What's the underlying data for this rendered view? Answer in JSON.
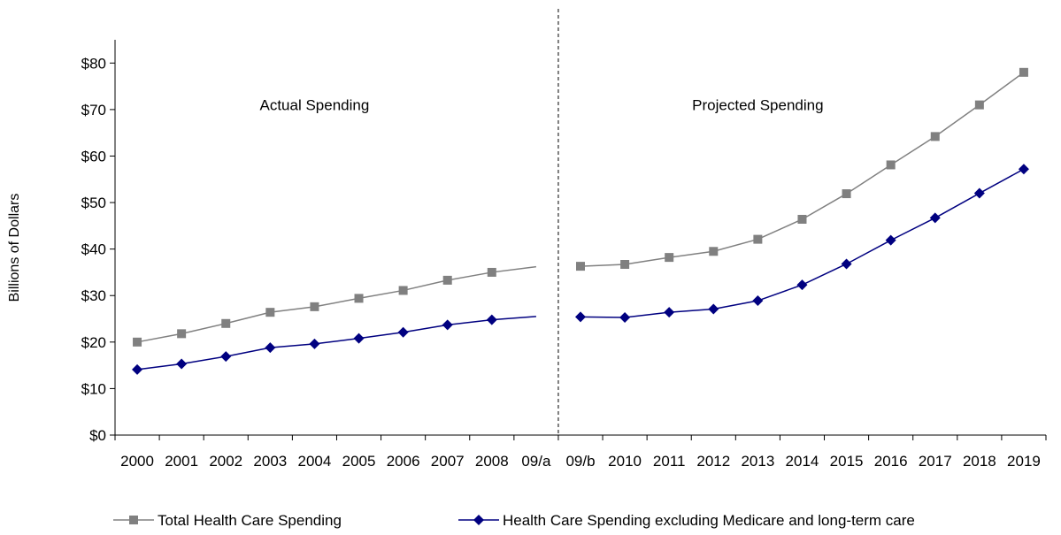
{
  "chart_data": {
    "type": "line",
    "title": "",
    "xlabel": "",
    "ylabel": "Billions of Dollars",
    "categories": [
      "2000",
      "2001",
      "2002",
      "2003",
      "2004",
      "2005",
      "2006",
      "2007",
      "2008",
      "09/a",
      "09/b",
      "2010",
      "2011",
      "2012",
      "2013",
      "2014",
      "2015",
      "2016",
      "2017",
      "2018",
      "2019"
    ],
    "y_tick_labels": [
      "$0",
      "$10",
      "$20",
      "$30",
      "$40",
      "$50",
      "$60",
      "$70",
      "$80"
    ],
    "y_ticks": [
      0,
      10,
      20,
      30,
      40,
      50,
      60,
      70,
      80
    ],
    "ylim": [
      0,
      85
    ],
    "grid": false,
    "legend_position": "bottom",
    "annotations": [
      {
        "text": "Actual Spending",
        "x_category": "2004",
        "y": 71
      },
      {
        "text": "Projected Spending",
        "x_category": "2013",
        "y": 71
      }
    ],
    "divider": {
      "between": [
        "09/a",
        "09/b"
      ],
      "style": "dashed"
    },
    "series": [
      {
        "name": "Total Health Care Spending",
        "color": "#808080",
        "marker": "square",
        "values": [
          20.0,
          21.8,
          24.0,
          26.4,
          27.6,
          29.4,
          31.1,
          33.3,
          35.0,
          36.2,
          36.3,
          36.7,
          38.2,
          39.5,
          42.1,
          46.4,
          51.9,
          58.1,
          64.2,
          71.0,
          78.0
        ]
      },
      {
        "name": "Health Care Spending excluding Medicare and long-term care",
        "color": "#000080",
        "marker": "diamond",
        "values": [
          14.1,
          15.3,
          16.9,
          18.8,
          19.6,
          20.8,
          22.1,
          23.7,
          24.8,
          25.5,
          25.4,
          25.3,
          26.4,
          27.1,
          28.9,
          32.3,
          36.8,
          41.9,
          46.7,
          52.0,
          57.2
        ]
      }
    ]
  }
}
